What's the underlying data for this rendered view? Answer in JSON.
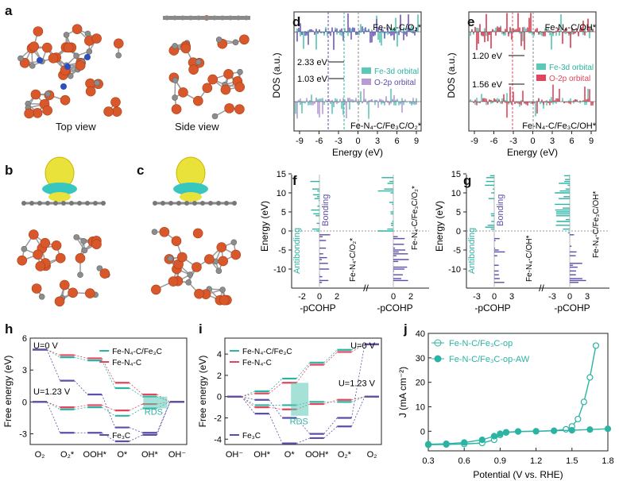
{
  "panels": {
    "a": {
      "label": "a",
      "top_caption": "Top view",
      "side_caption": "Side view"
    },
    "b": {
      "label": "b"
    },
    "c": {
      "label": "c"
    },
    "d": {
      "label": "d",
      "ylabel": "DOS (a.u.)",
      "xlabel": "Energy (eV)",
      "xticks": [
        "-9",
        "-6",
        "-3",
        "0",
        "3",
        "6",
        "9"
      ],
      "top_title": "Fe-N₄-C/O₂*",
      "bottom_title": "Fe-N₄-C/Fe₃C/O₂*",
      "gap1": "2.33 eV",
      "gap2": "1.03 eV",
      "legend": [
        "Fe-3d orbital",
        "O-2p orbital"
      ]
    },
    "e": {
      "label": "e",
      "ylabel": "DOS (a.u.)",
      "xlabel": "Energy (eV)",
      "xticks": [
        "-9",
        "-6",
        "-3",
        "0",
        "3",
        "6",
        "9"
      ],
      "top_title": "Fe-N₄-C/OH*",
      "bottom_title": "Fe-N₄-C/Fe₃C/OH*",
      "gap1": "1.20 eV",
      "gap2": "1.56 eV",
      "legend": [
        "Fe-3d orbital",
        "O-2p orbital"
      ]
    },
    "f": {
      "label": "f",
      "ylabel": "Energy (eV)",
      "yticks": [
        "15",
        "10",
        "5",
        "0",
        "-5",
        "-10"
      ],
      "left_xticks": [
        "-2",
        "0",
        "2"
      ],
      "right_xticks": [
        "0",
        "2"
      ],
      "xlabel": "-pCOHP",
      "antibonding": "Antibonding",
      "bonding": "Bonding",
      "left_title": "Fe-N₄-C/O₂*",
      "right_title": "Fe-N₄-C/Fe₃C/O₂*"
    },
    "g": {
      "label": "g",
      "ylabel": "Energy (eV)",
      "yticks": [
        "15",
        "10",
        "5",
        "0",
        "-5",
        "-10"
      ],
      "left_xticks": [
        "-3",
        "0",
        "3"
      ],
      "right_xticks": [
        "-3",
        "0",
        "3"
      ],
      "xlabel": "-pCOHP",
      "antibonding": "Antibonding",
      "bonding": "Bonding",
      "left_title": "Fe-N₄-C/OH*",
      "right_title": "Fe-N₄-C/Fe₃C/OH*"
    }
  },
  "chart_data": [
    {
      "id": "h",
      "label": "h",
      "type": "line",
      "ylabel": "Free energy (eV)",
      "categories": [
        "O₂",
        "O₂*",
        "OOH*",
        "O*",
        "OH*",
        "OH⁻"
      ],
      "yticks": [
        "6",
        "3",
        "0",
        "-3"
      ],
      "ylim": [
        -4,
        6
      ],
      "annotations": {
        "u0": "U=0 V",
        "u123": "U=1.23 V",
        "rds": "RDS"
      },
      "legend": [
        "Fe-N₄-C/Fe₃C",
        "Fe-N₄-C",
        "Fe₃C"
      ],
      "colors": [
        "#2bb3a3",
        "#e0465c",
        "#5b4ea6"
      ],
      "series": [
        {
          "name": "Fe-N₄-C/Fe₃C",
          "values": [
            4.92,
            4.2,
            3.9,
            1.3,
            0.5,
            0
          ]
        },
        {
          "name": "Fe-N₄-C",
          "values": [
            4.92,
            4.4,
            4.1,
            1.8,
            0.7,
            0
          ]
        },
        {
          "name": "Fe₃C",
          "values": [
            4.92,
            2.0,
            0.7,
            -2.4,
            -2.9,
            0
          ]
        }
      ],
      "series_u123": [
        {
          "name": "Fe-N₄-C/Fe₃C",
          "values": [
            0,
            -0.7,
            -0.5,
            -1.3,
            -0.6,
            0
          ]
        },
        {
          "name": "Fe-N₄-C",
          "values": [
            0,
            -0.5,
            -0.3,
            -0.8,
            -0.2,
            0
          ]
        },
        {
          "name": "Fe₃C",
          "values": [
            0,
            -2.9,
            -2.9,
            -3.7,
            -3.1,
            0
          ]
        }
      ]
    },
    {
      "id": "i",
      "label": "i",
      "type": "line",
      "ylabel": "Free energy (eV)",
      "categories": [
        "OH⁻",
        "OH*",
        "O*",
        "OOH*",
        "O₂*",
        "O₂"
      ],
      "yticks": [
        "4",
        "2",
        "0",
        "-2",
        "-4"
      ],
      "ylim": [
        -4.5,
        5.5
      ],
      "annotations": {
        "u0": "U=0 V",
        "u123": "U=1.23 V",
        "rds": "RDS"
      },
      "legend": [
        "Fe-N₄-C/Fe₃C",
        "Fe-N₄-C",
        "Fe₃C"
      ],
      "colors": [
        "#2bb3a3",
        "#e0465c",
        "#5b4ea6"
      ],
      "series": [
        {
          "name": "Fe-N₄-C/Fe₃C",
          "values": [
            0,
            0.5,
            1.7,
            3.2,
            4.4,
            4.92
          ]
        },
        {
          "name": "Fe-N₄-C",
          "values": [
            0,
            0.3,
            1.3,
            3.0,
            4.2,
            4.92
          ]
        },
        {
          "name": "Fe₃C",
          "values": [
            0,
            -0.3,
            -2.0,
            -3.5,
            -2.0,
            4.92
          ]
        }
      ],
      "series_u123": [
        {
          "name": "Fe-N₄-C/Fe₃C",
          "values": [
            0,
            -0.8,
            -0.8,
            -0.5,
            -0.5,
            0
          ]
        },
        {
          "name": "Fe-N₄-C",
          "values": [
            0,
            -1.0,
            -1.2,
            -0.7,
            -0.3,
            0
          ]
        },
        {
          "name": "Fe₃C",
          "values": [
            0,
            -1.6,
            -4.4,
            -3.9,
            -2.8,
            0
          ]
        }
      ]
    },
    {
      "id": "j",
      "label": "j",
      "type": "line",
      "xlabel": "Potential (V vs. RHE)",
      "ylabel": "J (mA cm⁻²)",
      "xticks": [
        "0.3",
        "0.6",
        "0.9",
        "1.2",
        "1.5",
        "1.8"
      ],
      "yticks": [
        "40",
        "30",
        "20",
        "10",
        "0"
      ],
      "xlim": [
        0.3,
        1.8
      ],
      "ylim": [
        -8,
        40
      ],
      "colors": [
        "#2bb3a3",
        "#2bb3a3"
      ],
      "series": [
        {
          "name": "Fe-N-C/Fe₃C-op",
          "x": [
            0.3,
            0.45,
            0.6,
            0.75,
            0.85,
            0.9,
            0.95,
            1.05,
            1.2,
            1.35,
            1.45,
            1.5,
            1.55,
            1.6,
            1.65,
            1.7
          ],
          "y": [
            -5.5,
            -5.4,
            -5.2,
            -4.8,
            -3.5,
            -1.5,
            -0.5,
            -0.1,
            0,
            0.2,
            0.8,
            2.0,
            5.0,
            12,
            22,
            35
          ]
        },
        {
          "name": "Fe-N-C/Fe₃C-op-AW",
          "x": [
            0.3,
            0.45,
            0.6,
            0.75,
            0.85,
            0.9,
            0.95,
            1.05,
            1.2,
            1.35,
            1.5,
            1.65,
            1.8
          ],
          "y": [
            -5.3,
            -5.1,
            -4.6,
            -3.5,
            -2.0,
            -1.0,
            -0.4,
            -0.1,
            0,
            0.2,
            0.4,
            0.7,
            1.0
          ]
        }
      ]
    }
  ]
}
